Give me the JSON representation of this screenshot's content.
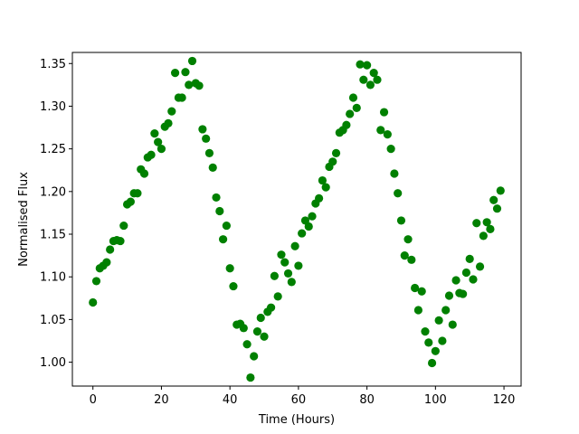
{
  "chart_data": {
    "type": "scatter",
    "title": "",
    "xlabel": "Time (Hours)",
    "ylabel": "Normalised Flux",
    "xlim": [
      -6,
      125
    ],
    "ylim": [
      0.972,
      1.363
    ],
    "xticks": [
      0,
      20,
      40,
      60,
      80,
      100,
      120
    ],
    "xtick_labels": [
      "0",
      "20",
      "40",
      "60",
      "80",
      "100",
      "120"
    ],
    "yticks": [
      1.0,
      1.05,
      1.1,
      1.15,
      1.2,
      1.25,
      1.3,
      1.35
    ],
    "ytick_labels": [
      "1.00",
      "1.05",
      "1.10",
      "1.15",
      "1.20",
      "1.25",
      "1.30",
      "1.35"
    ],
    "grid": false,
    "marker_color": "#008000",
    "series": [
      {
        "x": [
          0,
          1,
          2,
          3,
          4,
          5,
          6,
          7,
          8,
          9,
          10,
          11,
          12,
          13,
          14,
          15,
          16,
          17,
          18,
          19,
          20,
          21,
          22,
          23,
          24,
          25,
          26,
          27,
          28,
          29,
          30,
          31,
          32,
          33,
          34,
          35,
          36,
          37,
          38,
          39,
          40,
          41,
          42,
          43,
          44,
          45,
          46,
          47,
          48,
          49,
          50,
          51,
          52,
          53,
          54,
          55,
          56,
          57,
          58,
          59,
          60,
          61,
          62,
          63,
          64,
          65,
          66,
          67,
          68,
          69,
          70,
          71,
          72,
          73,
          74,
          75,
          76,
          77,
          78,
          79,
          80,
          81,
          82,
          83,
          84,
          85,
          86,
          87,
          88,
          89,
          90,
          91,
          92,
          93,
          94,
          95,
          96,
          97,
          98,
          99,
          100,
          101,
          102,
          103,
          104,
          105,
          106,
          107,
          108,
          109,
          110,
          111,
          112,
          113,
          114,
          115,
          116,
          117,
          118,
          119
        ],
        "y": [
          1.07,
          1.095,
          1.11,
          1.113,
          1.117,
          1.132,
          1.142,
          1.143,
          1.142,
          1.16,
          1.185,
          1.188,
          1.198,
          1.198,
          1.226,
          1.221,
          1.24,
          1.243,
          1.268,
          1.258,
          1.25,
          1.276,
          1.28,
          1.294,
          1.339,
          1.31,
          1.31,
          1.34,
          1.325,
          1.353,
          1.327,
          1.324,
          1.273,
          1.262,
          1.245,
          1.228,
          1.193,
          1.177,
          1.144,
          1.16,
          1.11,
          1.089,
          1.044,
          1.045,
          1.04,
          1.021,
          0.982,
          1.007,
          1.036,
          1.052,
          1.03,
          1.059,
          1.064,
          1.101,
          1.077,
          1.126,
          1.117,
          1.104,
          1.094,
          1.136,
          1.113,
          1.151,
          1.166,
          1.159,
          1.171,
          1.186,
          1.192,
          1.213,
          1.205,
          1.229,
          1.235,
          1.245,
          1.269,
          1.272,
          1.278,
          1.291,
          1.31,
          1.298,
          1.349,
          1.331,
          1.348,
          1.325,
          1.339,
          1.331,
          1.272,
          1.293,
          1.267,
          1.25,
          1.221,
          1.198,
          1.166,
          1.125,
          1.144,
          1.12,
          1.087,
          1.061,
          1.083,
          1.036,
          1.023,
          0.999,
          1.013,
          1.049,
          1.025,
          1.061,
          1.078,
          1.044,
          1.096,
          1.081,
          1.08,
          1.105,
          1.121,
          1.097,
          1.163,
          1.112,
          1.148,
          1.164,
          1.156,
          1.19,
          1.18,
          1.201
        ]
      }
    ]
  }
}
